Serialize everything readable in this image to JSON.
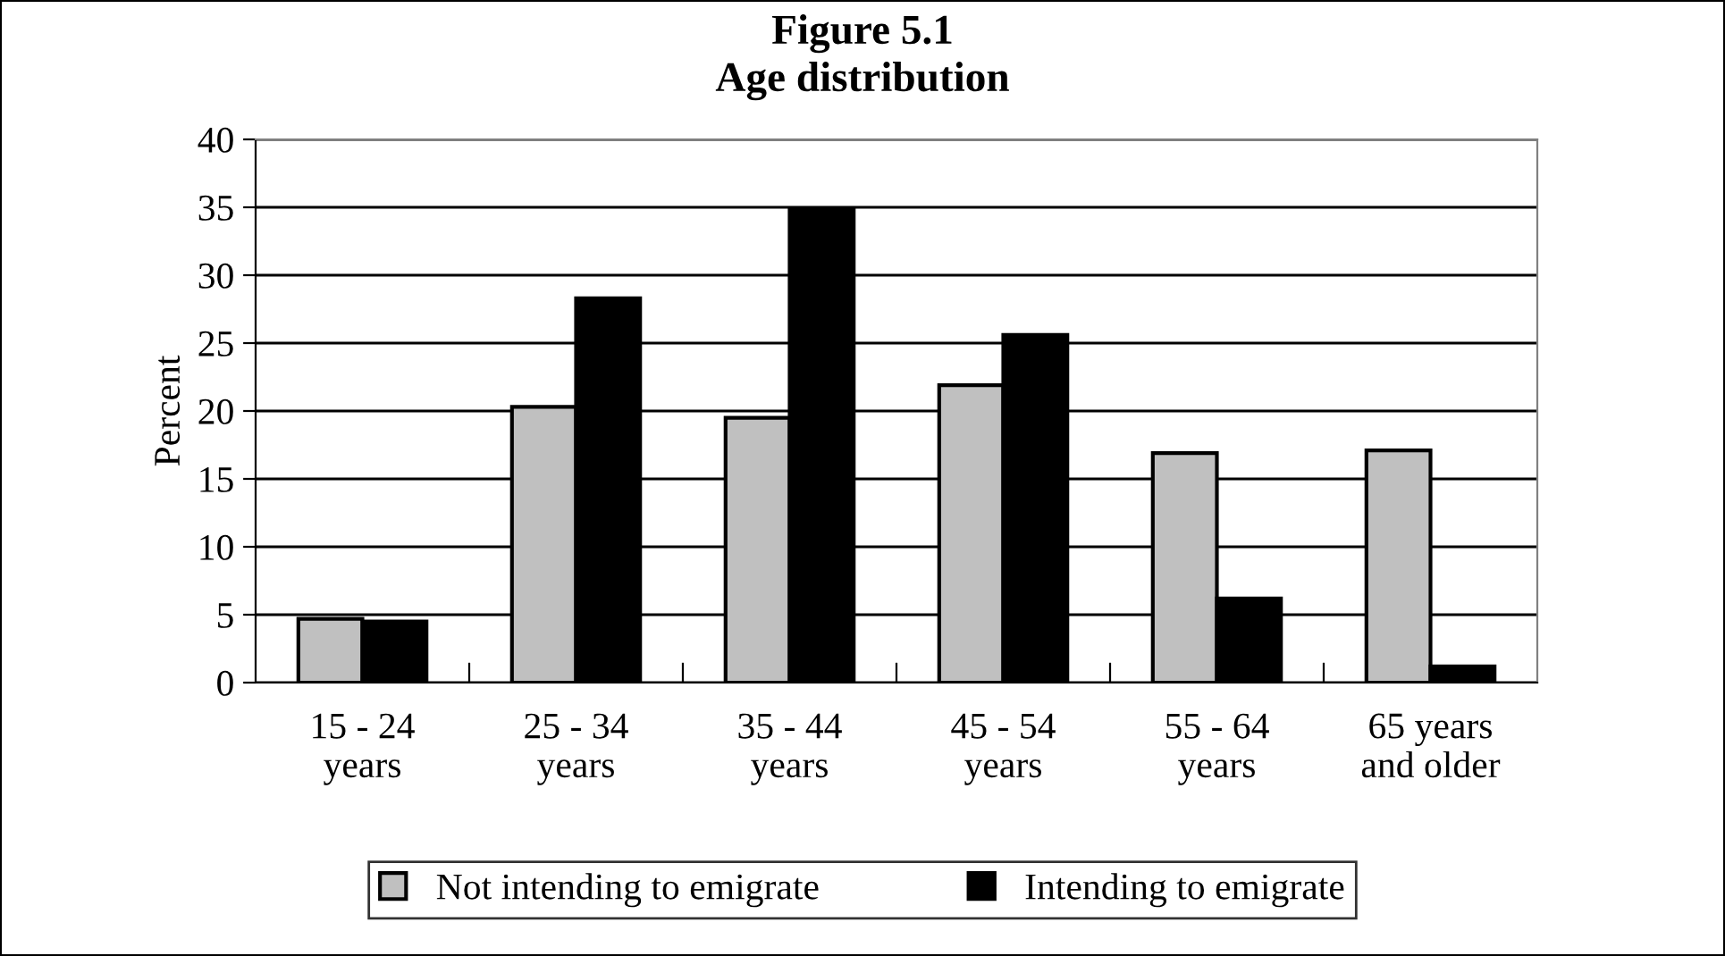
{
  "chart_data": {
    "type": "bar",
    "title": "Figure 5.1\nAge distribution",
    "ylabel": "Percent",
    "categories": [
      "15 - 24\nyears",
      "25 - 34\nyears",
      "35 - 44\nyears",
      "45 - 54\nyears",
      "55 - 64\nyears",
      "65 years\nand older"
    ],
    "series": [
      {
        "name": "Not intending to emigrate",
        "color": "#c0c0c0",
        "values": [
          4.7,
          20.3,
          19.5,
          21.9,
          16.9,
          17.1
        ]
      },
      {
        "name": "Intending to emigrate",
        "color": "#000000",
        "values": [
          4.5,
          28.3,
          34.8,
          25.6,
          6.2,
          1.2
        ]
      }
    ],
    "ylim": [
      0,
      40
    ],
    "yticks": [
      0,
      5,
      10,
      15,
      20,
      25,
      30,
      35,
      40
    ],
    "grid": "y",
    "legend": "bottom"
  }
}
